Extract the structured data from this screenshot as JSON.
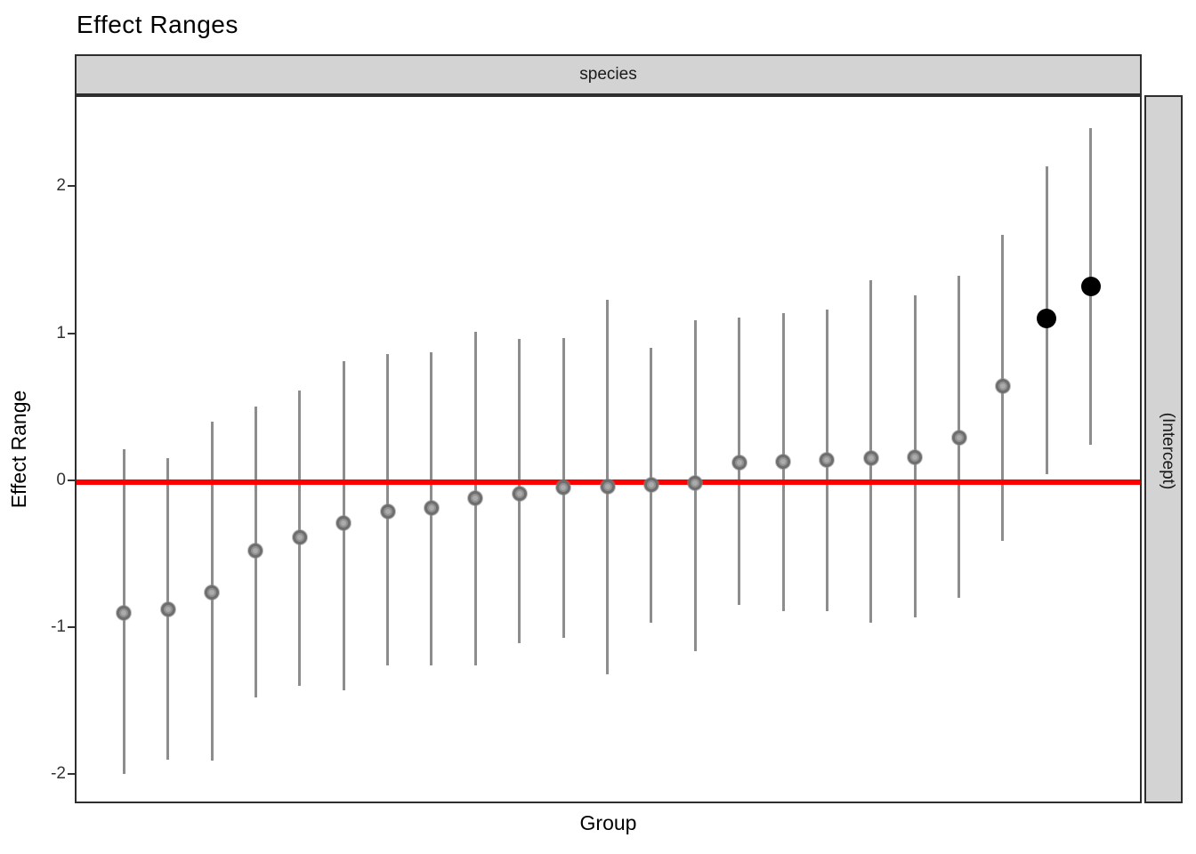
{
  "title": "Effect Ranges",
  "facet": {
    "top_label": "species",
    "right_label": "(Intercept)"
  },
  "axes": {
    "x_title": "Group",
    "y_title": "Effect Range",
    "y_ticks": [
      2,
      1,
      0,
      -1,
      -2
    ],
    "ylim": [
      -2.2,
      2.62
    ],
    "x_tick_labels_shown": false,
    "grid": "off"
  },
  "reference_line": {
    "y": 0,
    "color": "#ff0000"
  },
  "colors": {
    "strip_fill": "#d3d3d3",
    "strip_border": "#2e2e2e",
    "panel_border": "#2e2e2e",
    "error_bar": "#8d8d8d",
    "point_gray_fill": "#ababab",
    "point_gray_border": "#6e6e6e",
    "point_black": "#000000",
    "tick_text": "#333333"
  },
  "chart_data": {
    "type": "scatter",
    "title": "Effect Ranges",
    "xlabel": "Group",
    "ylabel": "Effect Range",
    "ylim": [
      -2.2,
      2.62
    ],
    "legend": "none",
    "description": "Caterpillar plot of random-effect (Intercept) ranges per group, sorted ascending; gray points have intervals crossing zero, black points do not; red horizontal reference line at 0.",
    "reference_line_y": 0,
    "points": [
      {
        "estimate": -0.89,
        "conf_low": -1.99,
        "conf_high": 0.22,
        "significant": false
      },
      {
        "estimate": -0.87,
        "conf_low": -1.89,
        "conf_high": 0.16,
        "significant": false
      },
      {
        "estimate": -0.75,
        "conf_low": -1.9,
        "conf_high": 0.41,
        "significant": false
      },
      {
        "estimate": -0.47,
        "conf_low": -1.47,
        "conf_high": 0.51,
        "significant": false
      },
      {
        "estimate": -0.38,
        "conf_low": -1.39,
        "conf_high": 0.62,
        "significant": false
      },
      {
        "estimate": -0.28,
        "conf_low": -1.42,
        "conf_high": 0.82,
        "significant": false
      },
      {
        "estimate": -0.2,
        "conf_low": -1.25,
        "conf_high": 0.87,
        "significant": false
      },
      {
        "estimate": -0.18,
        "conf_low": -1.25,
        "conf_high": 0.88,
        "significant": false
      },
      {
        "estimate": -0.11,
        "conf_low": -1.25,
        "conf_high": 1.02,
        "significant": false
      },
      {
        "estimate": -0.08,
        "conf_low": -1.1,
        "conf_high": 0.97,
        "significant": false
      },
      {
        "estimate": -0.04,
        "conf_low": -1.06,
        "conf_high": 0.98,
        "significant": false
      },
      {
        "estimate": -0.03,
        "conf_low": -1.31,
        "conf_high": 1.24,
        "significant": false
      },
      {
        "estimate": -0.02,
        "conf_low": -0.96,
        "conf_high": 0.91,
        "significant": false
      },
      {
        "estimate": -0.01,
        "conf_low": -1.15,
        "conf_high": 1.1,
        "significant": false
      },
      {
        "estimate": 0.13,
        "conf_low": -0.84,
        "conf_high": 1.12,
        "significant": false
      },
      {
        "estimate": 0.14,
        "conf_low": -0.88,
        "conf_high": 1.15,
        "significant": false
      },
      {
        "estimate": 0.15,
        "conf_low": -0.88,
        "conf_high": 1.17,
        "significant": false
      },
      {
        "estimate": 0.16,
        "conf_low": -0.96,
        "conf_high": 1.37,
        "significant": false
      },
      {
        "estimate": 0.17,
        "conf_low": -0.92,
        "conf_high": 1.27,
        "significant": false
      },
      {
        "estimate": 0.3,
        "conf_low": -0.79,
        "conf_high": 1.4,
        "significant": false
      },
      {
        "estimate": 0.65,
        "conf_low": -0.4,
        "conf_high": 1.68,
        "significant": false
      },
      {
        "estimate": 1.11,
        "conf_low": 0.05,
        "conf_high": 2.15,
        "significant": true
      },
      {
        "estimate": 1.33,
        "conf_low": 0.25,
        "conf_high": 2.41,
        "significant": true
      }
    ]
  }
}
